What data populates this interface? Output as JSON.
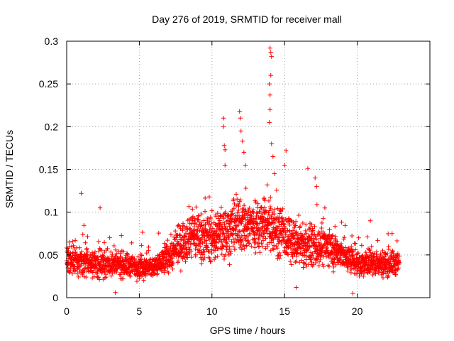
{
  "chart_data": {
    "type": "scatter",
    "title": "Day 276 of 2019, SRMTID for receiver mall",
    "xlabel": "GPS time / hours",
    "ylabel": "SRMTID / TECUs",
    "xlim": [
      0,
      25
    ],
    "ylim": [
      0,
      0.3
    ],
    "xticks": [
      0,
      5,
      10,
      15,
      20
    ],
    "yticks": [
      0,
      0.05,
      0.1,
      0.15,
      0.2,
      0.25,
      0.3
    ],
    "xtick_labels": [
      "0",
      "5",
      "10",
      "15",
      "20"
    ],
    "ytick_labels": [
      "0",
      "0.05",
      "0.1",
      "0.15",
      "0.2",
      "0.25",
      "0.3"
    ],
    "grid": true,
    "marker": "+",
    "color": "#ff0000",
    "data_coverage_hours": [
      0,
      22.9
    ],
    "baseline_profile": [
      {
        "x": 0.0,
        "y": 0.045
      },
      {
        "x": 2.0,
        "y": 0.04
      },
      {
        "x": 4.0,
        "y": 0.038
      },
      {
        "x": 6.0,
        "y": 0.035
      },
      {
        "x": 7.5,
        "y": 0.055
      },
      {
        "x": 8.5,
        "y": 0.075
      },
      {
        "x": 10.0,
        "y": 0.07
      },
      {
        "x": 12.0,
        "y": 0.085
      },
      {
        "x": 14.0,
        "y": 0.085
      },
      {
        "x": 16.0,
        "y": 0.06
      },
      {
        "x": 18.0,
        "y": 0.06
      },
      {
        "x": 20.0,
        "y": 0.04
      },
      {
        "x": 22.9,
        "y": 0.04
      }
    ],
    "notable_points": [
      {
        "x": 1.0,
        "y": 0.122
      },
      {
        "x": 2.3,
        "y": 0.105
      },
      {
        "x": 3.35,
        "y": 0.006
      },
      {
        "x": 10.8,
        "y": 0.21
      },
      {
        "x": 10.8,
        "y": 0.2
      },
      {
        "x": 10.85,
        "y": 0.178
      },
      {
        "x": 10.9,
        "y": 0.173
      },
      {
        "x": 10.9,
        "y": 0.155
      },
      {
        "x": 11.9,
        "y": 0.218
      },
      {
        "x": 11.95,
        "y": 0.21
      },
      {
        "x": 12.0,
        "y": 0.195
      },
      {
        "x": 12.1,
        "y": 0.183
      },
      {
        "x": 12.2,
        "y": 0.17
      },
      {
        "x": 12.3,
        "y": 0.155
      },
      {
        "x": 14.0,
        "y": 0.292
      },
      {
        "x": 14.05,
        "y": 0.287
      },
      {
        "x": 14.1,
        "y": 0.282
      },
      {
        "x": 14.05,
        "y": 0.26
      },
      {
        "x": 13.95,
        "y": 0.25
      },
      {
        "x": 14.0,
        "y": 0.237
      },
      {
        "x": 14.0,
        "y": 0.22
      },
      {
        "x": 13.95,
        "y": 0.205
      },
      {
        "x": 14.1,
        "y": 0.18
      },
      {
        "x": 14.2,
        "y": 0.165
      },
      {
        "x": 14.3,
        "y": 0.145
      },
      {
        "x": 15.1,
        "y": 0.172
      },
      {
        "x": 15.0,
        "y": 0.155
      },
      {
        "x": 16.6,
        "y": 0.151
      },
      {
        "x": 17.1,
        "y": 0.14
      },
      {
        "x": 17.2,
        "y": 0.13
      },
      {
        "x": 19.7,
        "y": 0.005
      },
      {
        "x": 20.1,
        "y": 0.07
      },
      {
        "x": 20.9,
        "y": 0.09
      },
      {
        "x": 22.4,
        "y": 0.075
      },
      {
        "x": 15.8,
        "y": 0.012
      }
    ]
  }
}
